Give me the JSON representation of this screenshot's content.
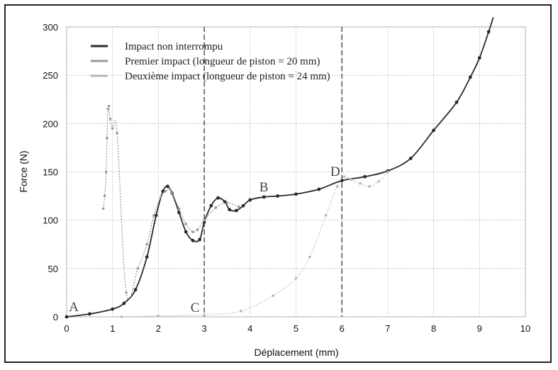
{
  "chart_data": {
    "type": "line",
    "xlabel": "Déplacement (mm)",
    "ylabel": "Force (N)",
    "xlim": [
      0,
      10
    ],
    "ylim": [
      0,
      300
    ],
    "xticks": [
      0,
      1,
      2,
      3,
      4,
      5,
      6,
      7,
      8,
      9,
      10
    ],
    "yticks": [
      0,
      50,
      100,
      150,
      200,
      250,
      300
    ],
    "grid": true,
    "legend_position": "top-left",
    "vlines": [
      3,
      6
    ],
    "series": [
      {
        "name": "Impact non interrompu",
        "color": "#2a2a2a",
        "x": [
          0,
          0.5,
          1.0,
          1.25,
          1.5,
          1.75,
          1.95,
          2.1,
          2.2,
          2.3,
          2.45,
          2.6,
          2.75,
          2.9,
          3.0,
          3.15,
          3.3,
          3.45,
          3.55,
          3.7,
          3.85,
          4.0,
          4.3,
          4.6,
          5.0,
          5.5,
          6.0,
          6.5,
          7.0,
          7.5,
          8.0,
          8.5,
          8.8,
          9.0,
          9.2,
          9.3
        ],
        "y": [
          0,
          3,
          8,
          14,
          28,
          62,
          105,
          130,
          135,
          128,
          108,
          88,
          79,
          80,
          98,
          115,
          123,
          119,
          111,
          110,
          115,
          121,
          124,
          125,
          127,
          132,
          141,
          145,
          151,
          164,
          193,
          222,
          248,
          268,
          295,
          310
        ]
      },
      {
        "name": "Premier impact (longueur de piston = 20 mm)",
        "color": "#9a9a9a",
        "x": [
          0.8,
          0.83,
          0.86,
          0.88,
          0.9,
          0.92,
          0.95,
          1.0,
          1.1,
          1.3,
          1.55,
          1.75,
          1.9,
          2.05,
          2.15,
          2.25,
          2.3,
          2.45,
          2.6,
          2.75,
          2.85,
          3.0,
          3.25,
          3.5,
          3.75
        ],
        "y": [
          112,
          125,
          150,
          185,
          215,
          218,
          205,
          195,
          190,
          25,
          50,
          75,
          105,
          124,
          130,
          132,
          128,
          112,
          96,
          88,
          90,
          100,
          113,
          118,
          114
        ]
      },
      {
        "name": "Deuxième impact (longueur de piston = 24 mm)",
        "color": "#b5b5b5",
        "x": [
          1.2,
          2.0,
          3.0,
          3.8,
          4.5,
          5.0,
          5.3,
          5.65,
          5.9,
          6.05,
          6.2,
          6.4,
          6.6,
          6.8,
          7.0
        ],
        "y": [
          0,
          1,
          2,
          6,
          22,
          40,
          62,
          105,
          135,
          145,
          142,
          138,
          135,
          140,
          150
        ]
      }
    ],
    "annotations": [
      {
        "text": "A",
        "x": 0.05,
        "y": 6
      },
      {
        "text": "B",
        "x": 4.2,
        "y": 130
      },
      {
        "text": "C",
        "x": 2.7,
        "y": 5
      },
      {
        "text": "D",
        "x": 5.75,
        "y": 146
      }
    ]
  }
}
